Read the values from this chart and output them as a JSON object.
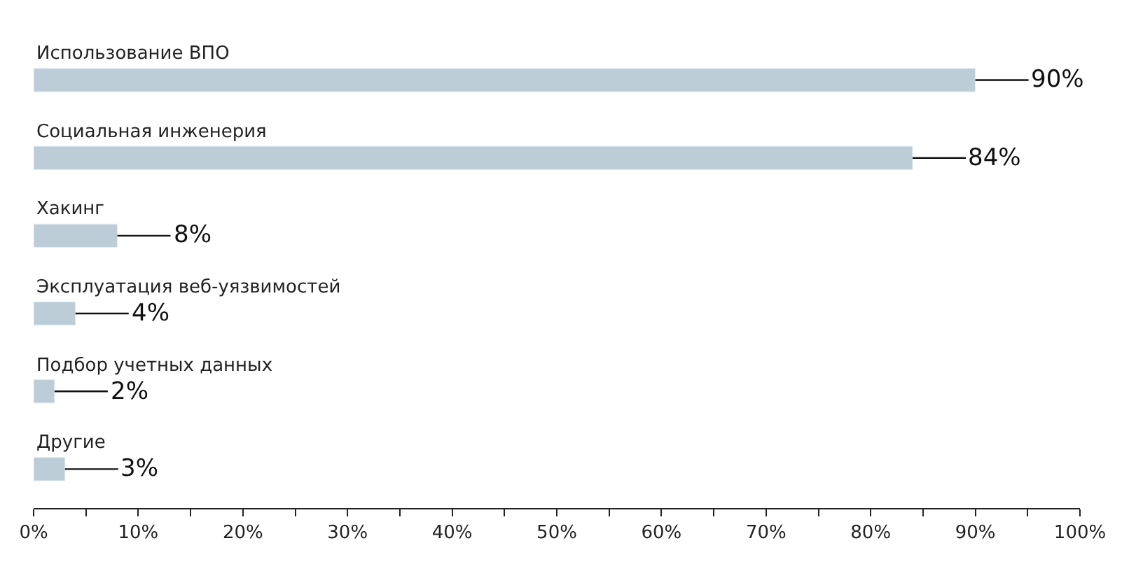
{
  "chart_data": {
    "type": "bar",
    "orientation": "horizontal",
    "categories": [
      "Использование ВПО",
      "Социальная инженерия",
      "Хакинг",
      "Эксплуатация веб-уязвимостей",
      "Подбор учетных данных",
      "Другие"
    ],
    "values": [
      90,
      84,
      8,
      4,
      2,
      3
    ],
    "color": "#bccdd7",
    "value_labels": [
      "90%",
      "84%",
      "8%",
      "4%",
      "2%",
      "3%"
    ],
    "xlim": [
      0,
      100
    ],
    "xticks": [
      {
        "value": 0,
        "label": "0%"
      },
      {
        "value": 5,
        "label": null
      },
      {
        "value": 10,
        "label": "10%"
      },
      {
        "value": 15,
        "label": null
      },
      {
        "value": 20,
        "label": "20%"
      },
      {
        "value": 25,
        "label": null
      },
      {
        "value": 30,
        "label": "30%"
      },
      {
        "value": 35,
        "label": null
      },
      {
        "value": 40,
        "label": "40%"
      },
      {
        "value": 45,
        "label": null
      },
      {
        "value": 50,
        "label": "50%"
      },
      {
        "value": 55,
        "label": null
      },
      {
        "value": 60,
        "label": "60%"
      },
      {
        "value": 65,
        "label": null
      },
      {
        "value": 70,
        "label": "70%"
      },
      {
        "value": 75,
        "label": null
      },
      {
        "value": 80,
        "label": "80%"
      },
      {
        "value": 85,
        "label": null
      },
      {
        "value": 90,
        "label": "90%"
      },
      {
        "value": 95,
        "label": null
      },
      {
        "value": 100,
        "label": "100%"
      }
    ],
    "tick_labels": "x"
  }
}
